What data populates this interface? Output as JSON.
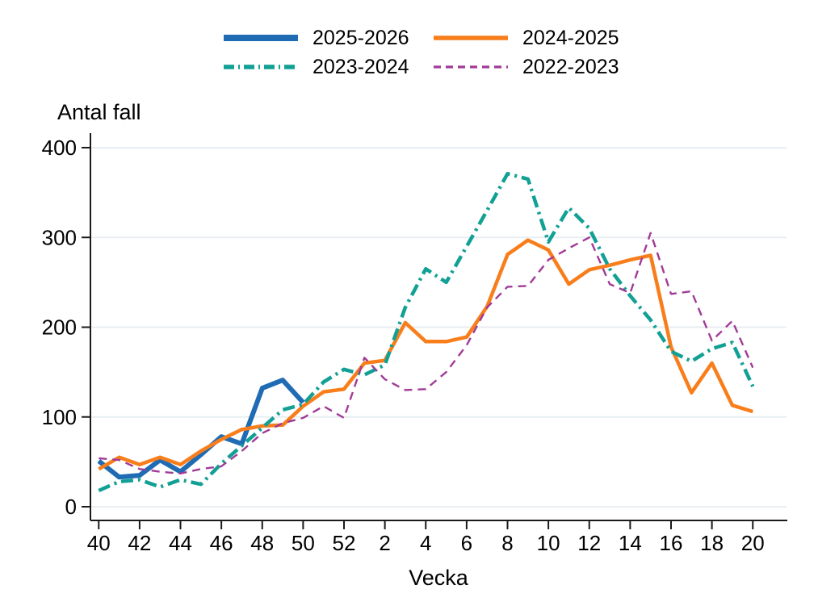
{
  "chart_data": {
    "type": "line",
    "ylabel": "Antal fall",
    "xlabel": "Vecka",
    "ylim": [
      0,
      400
    ],
    "y_ticks": [
      0,
      100,
      200,
      300,
      400
    ],
    "categories": [
      40,
      41,
      42,
      43,
      44,
      45,
      46,
      47,
      48,
      49,
      50,
      51,
      52,
      1,
      2,
      3,
      4,
      5,
      6,
      7,
      8,
      9,
      10,
      11,
      12,
      13,
      14,
      15,
      16,
      17,
      18,
      19,
      20
    ],
    "x_tick_labels": [
      "40",
      "42",
      "44",
      "46",
      "48",
      "50",
      "52",
      "2",
      "4",
      "6",
      "8",
      "10",
      "12",
      "14",
      "16",
      "18",
      "20"
    ],
    "grid": true,
    "legend_position": "top-center",
    "gridline_color": "#e8eef2",
    "axis_color": "#1a1a1a",
    "series": [
      {
        "name": "2025-2026",
        "color": "#1f6cb4",
        "line_style": "solid",
        "line_weight": "thick",
        "values": [
          51,
          33,
          35,
          52,
          39,
          58,
          78,
          70,
          132,
          141,
          116,
          null,
          null,
          null,
          null,
          null,
          null,
          null,
          null,
          null,
          null,
          null,
          null,
          null,
          null,
          null,
          null,
          null,
          null,
          null,
          null,
          null,
          null
        ]
      },
      {
        "name": "2024-2025",
        "color": "#f87e1c",
        "line_style": "solid",
        "line_weight": "normal",
        "values": [
          42,
          55,
          47,
          55,
          47,
          62,
          75,
          86,
          90,
          91,
          112,
          128,
          131,
          160,
          163,
          205,
          184,
          184,
          189,
          223,
          281,
          297,
          286,
          248,
          264,
          269,
          275,
          280,
          178,
          127,
          160,
          113,
          106
        ]
      },
      {
        "name": "2023-2024",
        "color": "#12a095",
        "line_style": "dash-dot",
        "line_weight": "normal",
        "values": [
          18,
          28,
          30,
          22,
          30,
          25,
          48,
          68,
          88,
          108,
          114,
          139,
          153,
          147,
          158,
          222,
          265,
          250,
          290,
          330,
          371,
          365,
          295,
          333,
          310,
          265,
          235,
          208,
          173,
          162,
          176,
          183,
          134
        ]
      },
      {
        "name": "2022-2023",
        "color": "#a13a97",
        "line_style": "dashed",
        "line_weight": "thin",
        "values": [
          54,
          52,
          42,
          39,
          37,
          42,
          45,
          62,
          82,
          93,
          99,
          112,
          99,
          166,
          142,
          130,
          131,
          150,
          180,
          222,
          245,
          246,
          275,
          288,
          300,
          248,
          238,
          305,
          237,
          240,
          185,
          207,
          155
        ]
      }
    ]
  }
}
